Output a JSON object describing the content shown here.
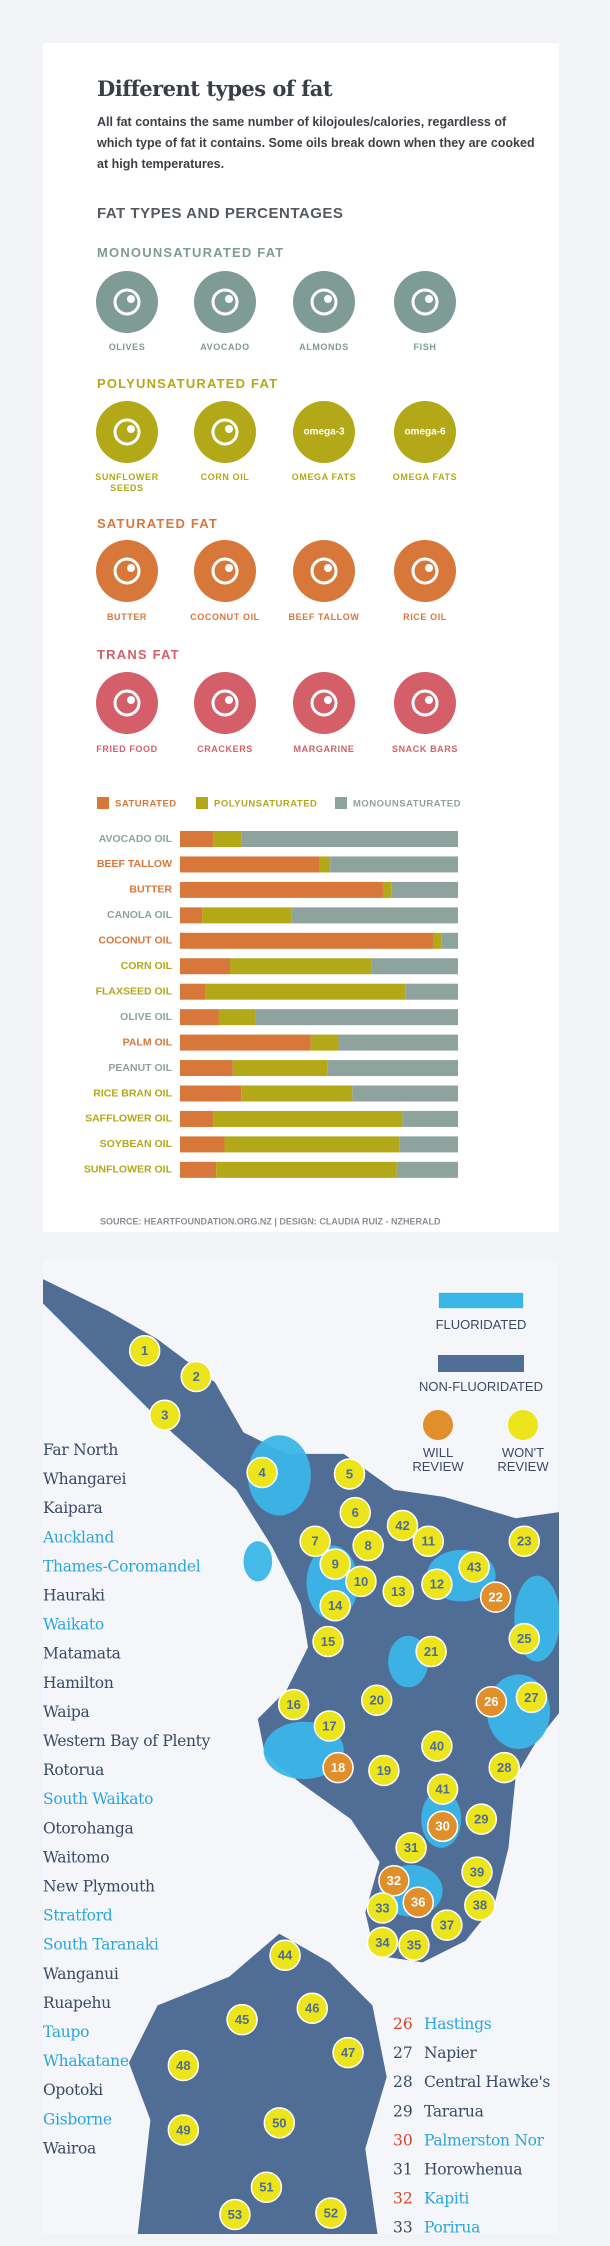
{
  "header": {
    "title": "Different types of fat",
    "intro": "All fat contains the same number of kilojoules/calories, regardless of which type of fat it contains. Some oils break down when they are cooked at high temperatures.",
    "section_title": "FAT TYPES AND PERCENTAGES"
  },
  "fat_groups": [
    {
      "title": "MONOUNSATURATED FAT",
      "color": "#7f9b96",
      "items": [
        {
          "label": "OLIVES"
        },
        {
          "label": "AVOCADO"
        },
        {
          "label": "ALMONDS"
        },
        {
          "label": "FISH"
        }
      ]
    },
    {
      "title": "POLYUNSATURATED FAT",
      "color": "#b3a818",
      "items": [
        {
          "label": "SUNFLOWER SEEDS"
        },
        {
          "label": "CORN OIL"
        },
        {
          "label": "OMEGA FATS",
          "icon_text": "omega-3"
        },
        {
          "label": "OMEGA FATS",
          "icon_text": "omega-6"
        }
      ]
    },
    {
      "title": "SATURATED FAT",
      "color": "#d8773a",
      "items": [
        {
          "label": "BUTTER"
        },
        {
          "label": "COCONUT OIL"
        },
        {
          "label": "BEEF TALLOW"
        },
        {
          "label": "RICE OIL"
        }
      ]
    },
    {
      "title": "TRANS FAT",
      "color": "#d45f68",
      "items": [
        {
          "label": "FRIED FOOD"
        },
        {
          "label": "CRACKERS"
        },
        {
          "label": "MARGARINE"
        },
        {
          "label": "SNACK BARS"
        }
      ]
    }
  ],
  "chart_data": {
    "type": "bar",
    "orientation": "horizontal",
    "stacked": true,
    "categories": [
      "AVOCADO OIL",
      "BEEF TALLOW",
      "BUTTER",
      "CANOLA OIL",
      "COCONUT OIL",
      "CORN OIL",
      "FLAXSEED OIL",
      "OLIVE OIL",
      "PALM OIL",
      "PEANUT OIL",
      "RICE BRAN OIL",
      "SAFFLOWER OIL",
      "SOYBEAN OIL",
      "SUNFLOWER OIL"
    ],
    "series": [
      {
        "name": "SATURATED",
        "color": "#d8773a",
        "values": [
          12,
          50,
          73,
          8,
          91,
          18,
          9,
          14,
          47,
          19,
          22,
          12,
          16,
          13
        ]
      },
      {
        "name": "POLYUNSATURATED",
        "color": "#b3a818",
        "values": [
          10,
          4,
          3,
          32,
          3,
          51,
          72,
          13,
          10,
          34,
          40,
          68,
          63,
          65
        ]
      },
      {
        "name": "MONOUNSATURATED",
        "color": "#8fa39e",
        "values": [
          78,
          46,
          24,
          60,
          6,
          31,
          19,
          73,
          43,
          47,
          38,
          20,
          21,
          22
        ]
      }
    ]
  },
  "source": "SOURCE:  HEARTFOUNDATION.ORG.NZ   |   DESIGN:  CLAUDIA RUIZ - NZHERALD",
  "map": {
    "legend": {
      "fluoridated": {
        "label": "FLUORIDATED",
        "color": "#3bb6e8"
      },
      "non_fluoridated": {
        "label": "NON-FLUORIDATED",
        "color": "#4f6d95"
      },
      "will_review": {
        "label": "WILL REVIEW",
        "color": "#e08f2a"
      },
      "wont_review": {
        "label": "WON'T REVIEW",
        "color": "#ece51c"
      }
    },
    "district_list": [
      {
        "name": "Far North",
        "fluoridated": false
      },
      {
        "name": "Whangarei",
        "fluoridated": false
      },
      {
        "name": "Kaipara",
        "fluoridated": false
      },
      {
        "name": "Auckland",
        "fluoridated": true
      },
      {
        "name": "Thames-Coromandel",
        "fluoridated": true
      },
      {
        "name": "Hauraki",
        "fluoridated": false
      },
      {
        "name": "Waikato",
        "fluoridated": true
      },
      {
        "name": "Matamata",
        "fluoridated": false
      },
      {
        "name": "Hamilton",
        "fluoridated": false
      },
      {
        "name": "Waipa",
        "fluoridated": false
      },
      {
        "name": "Western Bay of Plenty",
        "fluoridated": false
      },
      {
        "name": "Rotorua",
        "fluoridated": false
      },
      {
        "name": "South Waikato",
        "fluoridated": true
      },
      {
        "name": "Otorohanga",
        "fluoridated": false
      },
      {
        "name": "Waitomo",
        "fluoridated": false
      },
      {
        "name": "New Plymouth",
        "fluoridated": false
      },
      {
        "name": "Stratford",
        "fluoridated": true
      },
      {
        "name": "South Taranaki",
        "fluoridated": true
      },
      {
        "name": "Wanganui",
        "fluoridated": false
      },
      {
        "name": "Ruapehu",
        "fluoridated": false
      },
      {
        "name": "Taupo",
        "fluoridated": true
      },
      {
        "name": "Whakatane",
        "fluoridated": true
      },
      {
        "name": "Opotoki",
        "fluoridated": false
      },
      {
        "name": "Gisborne",
        "fluoridated": true
      },
      {
        "name": "Wairoa",
        "fluoridated": false
      }
    ],
    "numbered_list": [
      {
        "number": 26,
        "name": "Hastings",
        "fluoridated": true,
        "will_review": true
      },
      {
        "number": 27,
        "name": "Napier",
        "fluoridated": false,
        "will_review": false
      },
      {
        "number": 28,
        "name": "Central Hawke's",
        "fluoridated": false,
        "will_review": false
      },
      {
        "number": 29,
        "name": "Tararua",
        "fluoridated": false,
        "will_review": false
      },
      {
        "number": 30,
        "name": "Palmerston Nor",
        "fluoridated": true,
        "will_review": true
      },
      {
        "number": 31,
        "name": "Horowhenua",
        "fluoridated": false,
        "will_review": false
      },
      {
        "number": 32,
        "name": "Kapiti",
        "fluoridated": true,
        "will_review": true
      },
      {
        "number": 33,
        "name": "Porirua",
        "fluoridated": true,
        "will_review": false
      }
    ],
    "markers": [
      {
        "number": 1,
        "will_review": false
      },
      {
        "number": 2,
        "will_review": false
      },
      {
        "number": 3,
        "will_review": false
      },
      {
        "number": 4,
        "will_review": false
      },
      {
        "number": 5,
        "will_review": false
      },
      {
        "number": 6,
        "will_review": false
      },
      {
        "number": 7,
        "will_review": false
      },
      {
        "number": 8,
        "will_review": false
      },
      {
        "number": 9,
        "will_review": false
      },
      {
        "number": 10,
        "will_review": false
      },
      {
        "number": 11,
        "will_review": false
      },
      {
        "number": 12,
        "will_review": false
      },
      {
        "number": 13,
        "will_review": false
      },
      {
        "number": 14,
        "will_review": false
      },
      {
        "number": 15,
        "will_review": false
      },
      {
        "number": 16,
        "will_review": false
      },
      {
        "number": 17,
        "will_review": false
      },
      {
        "number": 18,
        "will_review": true
      },
      {
        "number": 19,
        "will_review": false
      },
      {
        "number": 20,
        "will_review": false
      },
      {
        "number": 21,
        "will_review": false
      },
      {
        "number": 22,
        "will_review": true
      },
      {
        "number": 23,
        "will_review": false
      },
      {
        "number": 25,
        "will_review": false
      },
      {
        "number": 26,
        "will_review": true
      },
      {
        "number": 27,
        "will_review": false
      },
      {
        "number": 28,
        "will_review": false
      },
      {
        "number": 29,
        "will_review": false
      },
      {
        "number": 30,
        "will_review": true
      },
      {
        "number": 31,
        "will_review": false
      },
      {
        "number": 32,
        "will_review": true
      },
      {
        "number": 33,
        "will_review": false
      },
      {
        "number": 34,
        "will_review": false
      },
      {
        "number": 35,
        "will_review": false
      },
      {
        "number": 36,
        "will_review": true
      },
      {
        "number": 37,
        "will_review": false
      },
      {
        "number": 38,
        "will_review": false
      },
      {
        "number": 39,
        "will_review": false
      },
      {
        "number": 40,
        "will_review": false
      },
      {
        "number": 41,
        "will_review": false
      },
      {
        "number": 42,
        "will_review": false
      },
      {
        "number": 43,
        "will_review": false
      },
      {
        "number": 44,
        "will_review": false
      },
      {
        "number": 45,
        "will_review": false
      },
      {
        "number": 46,
        "will_review": false
      },
      {
        "number": 47,
        "will_review": false
      },
      {
        "number": 48,
        "will_review": false
      },
      {
        "number": 49,
        "will_review": false
      },
      {
        "number": 50,
        "will_review": false
      },
      {
        "number": 51,
        "will_review": false
      },
      {
        "number": 52,
        "will_review": false
      },
      {
        "number": 53,
        "will_review": false
      }
    ]
  }
}
